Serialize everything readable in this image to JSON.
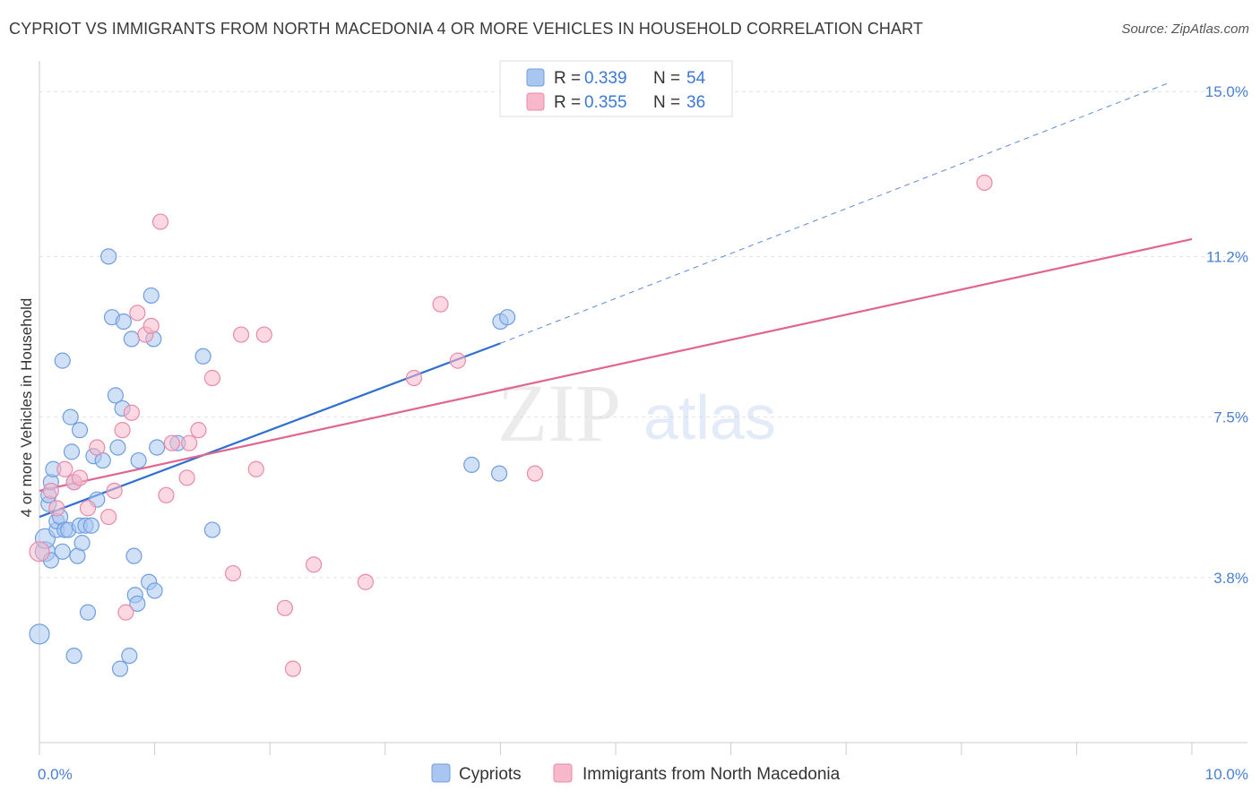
{
  "title": "CYPRIOT VS IMMIGRANTS FROM NORTH MACEDONIA 4 OR MORE VEHICLES IN HOUSEHOLD CORRELATION CHART",
  "source": "Source: ZipAtlas.com",
  "watermark": {
    "zip": "ZIP",
    "atlas": "atlas"
  },
  "legend": {
    "r_label": "R =",
    "n_label": "N =",
    "rows": [
      {
        "series": "Cypriots",
        "r": "0.339",
        "n": "54",
        "color": "#a8c6f0",
        "stroke": "#6f9ee0"
      },
      {
        "series": "Immigrants from North Macedonia",
        "r": "0.355",
        "n": "36",
        "color": "#f7b8cb",
        "stroke": "#e98aa8"
      }
    ]
  },
  "chart_data": {
    "type": "scatter",
    "title": "CYPRIOT VS IMMIGRANTS FROM NORTH MACEDONIA 4 OR MORE VEHICLES IN HOUSEHOLD CORRELATION CHART",
    "xlabel": "",
    "ylabel": "4 or more Vehicles in Household",
    "xlim": [
      0,
      10
    ],
    "ylim": [
      0,
      15.5
    ],
    "x_tick_labels": [
      "0.0%",
      "10.0%"
    ],
    "y_ticks": [
      3.8,
      7.5,
      11.2,
      15.0
    ],
    "y_tick_labels": [
      "3.8%",
      "7.5%",
      "11.2%",
      "15.0%"
    ],
    "grid": true,
    "series": [
      {
        "name": "Cypriots",
        "color": "#a8c6f0",
        "line_color": "#2f6fd0",
        "trend": {
          "x0": 0.0,
          "y0": 5.2,
          "x1": 4.0,
          "y1": 9.2,
          "dash_to_x": 9.8,
          "dash_to_y": 15.2
        },
        "points": [
          [
            0.0,
            2.5
          ],
          [
            0.05,
            4.4
          ],
          [
            0.05,
            4.7
          ],
          [
            0.08,
            5.5
          ],
          [
            0.08,
            5.7
          ],
          [
            0.1,
            6.0
          ],
          [
            0.12,
            6.3
          ],
          [
            0.1,
            4.2
          ],
          [
            0.15,
            4.9
          ],
          [
            0.15,
            5.1
          ],
          [
            0.18,
            5.2
          ],
          [
            0.2,
            4.4
          ],
          [
            0.2,
            8.8
          ],
          [
            0.22,
            4.9
          ],
          [
            0.25,
            4.9
          ],
          [
            0.27,
            7.5
          ],
          [
            0.28,
            6.7
          ],
          [
            0.3,
            6.0
          ],
          [
            0.3,
            2.0
          ],
          [
            0.33,
            4.3
          ],
          [
            0.35,
            5.0
          ],
          [
            0.35,
            7.2
          ],
          [
            0.37,
            4.6
          ],
          [
            0.4,
            5.0
          ],
          [
            0.42,
            3.0
          ],
          [
            0.45,
            5.0
          ],
          [
            0.47,
            6.6
          ],
          [
            0.5,
            5.6
          ],
          [
            0.55,
            6.5
          ],
          [
            0.6,
            11.2
          ],
          [
            0.63,
            9.8
          ],
          [
            0.66,
            8.0
          ],
          [
            0.68,
            6.8
          ],
          [
            0.7,
            1.7
          ],
          [
            0.72,
            7.7
          ],
          [
            0.73,
            9.7
          ],
          [
            0.78,
            2.0
          ],
          [
            0.8,
            9.3
          ],
          [
            0.82,
            4.3
          ],
          [
            0.83,
            3.4
          ],
          [
            0.85,
            3.2
          ],
          [
            0.86,
            6.5
          ],
          [
            0.95,
            3.7
          ],
          [
            0.97,
            10.3
          ],
          [
            0.99,
            9.3
          ],
          [
            1.0,
            3.5
          ],
          [
            1.02,
            6.8
          ],
          [
            1.2,
            6.9
          ],
          [
            1.42,
            8.9
          ],
          [
            1.5,
            4.9
          ],
          [
            3.75,
            6.4
          ],
          [
            3.99,
            6.2
          ],
          [
            4.0,
            9.7
          ],
          [
            4.06,
            9.8
          ]
        ]
      },
      {
        "name": "Immigrants from North Macedonia",
        "color": "#f7b8cb",
        "line_color": "#e0658f",
        "trend": {
          "x0": 0.0,
          "y0": 5.8,
          "x1": 10.0,
          "y1": 11.6
        },
        "points": [
          [
            0.0,
            4.4
          ],
          [
            0.1,
            5.8
          ],
          [
            0.15,
            5.4
          ],
          [
            0.22,
            6.3
          ],
          [
            0.3,
            6.0
          ],
          [
            0.35,
            6.1
          ],
          [
            0.42,
            5.4
          ],
          [
            0.5,
            6.8
          ],
          [
            0.6,
            5.2
          ],
          [
            0.65,
            5.8
          ],
          [
            0.72,
            7.2
          ],
          [
            0.75,
            3.0
          ],
          [
            0.8,
            7.6
          ],
          [
            0.85,
            9.9
          ],
          [
            0.92,
            9.4
          ],
          [
            0.97,
            9.6
          ],
          [
            1.05,
            12.0
          ],
          [
            1.1,
            5.7
          ],
          [
            1.15,
            6.9
          ],
          [
            1.28,
            6.1
          ],
          [
            1.3,
            6.9
          ],
          [
            1.38,
            7.2
          ],
          [
            1.5,
            8.4
          ],
          [
            1.68,
            3.9
          ],
          [
            1.75,
            9.4
          ],
          [
            1.88,
            6.3
          ],
          [
            1.95,
            9.4
          ],
          [
            2.13,
            3.1
          ],
          [
            2.2,
            1.7
          ],
          [
            2.38,
            4.1
          ],
          [
            2.83,
            3.7
          ],
          [
            3.25,
            8.4
          ],
          [
            3.48,
            10.1
          ],
          [
            3.63,
            8.8
          ],
          [
            4.3,
            6.2
          ],
          [
            8.2,
            12.9
          ]
        ]
      }
    ]
  }
}
